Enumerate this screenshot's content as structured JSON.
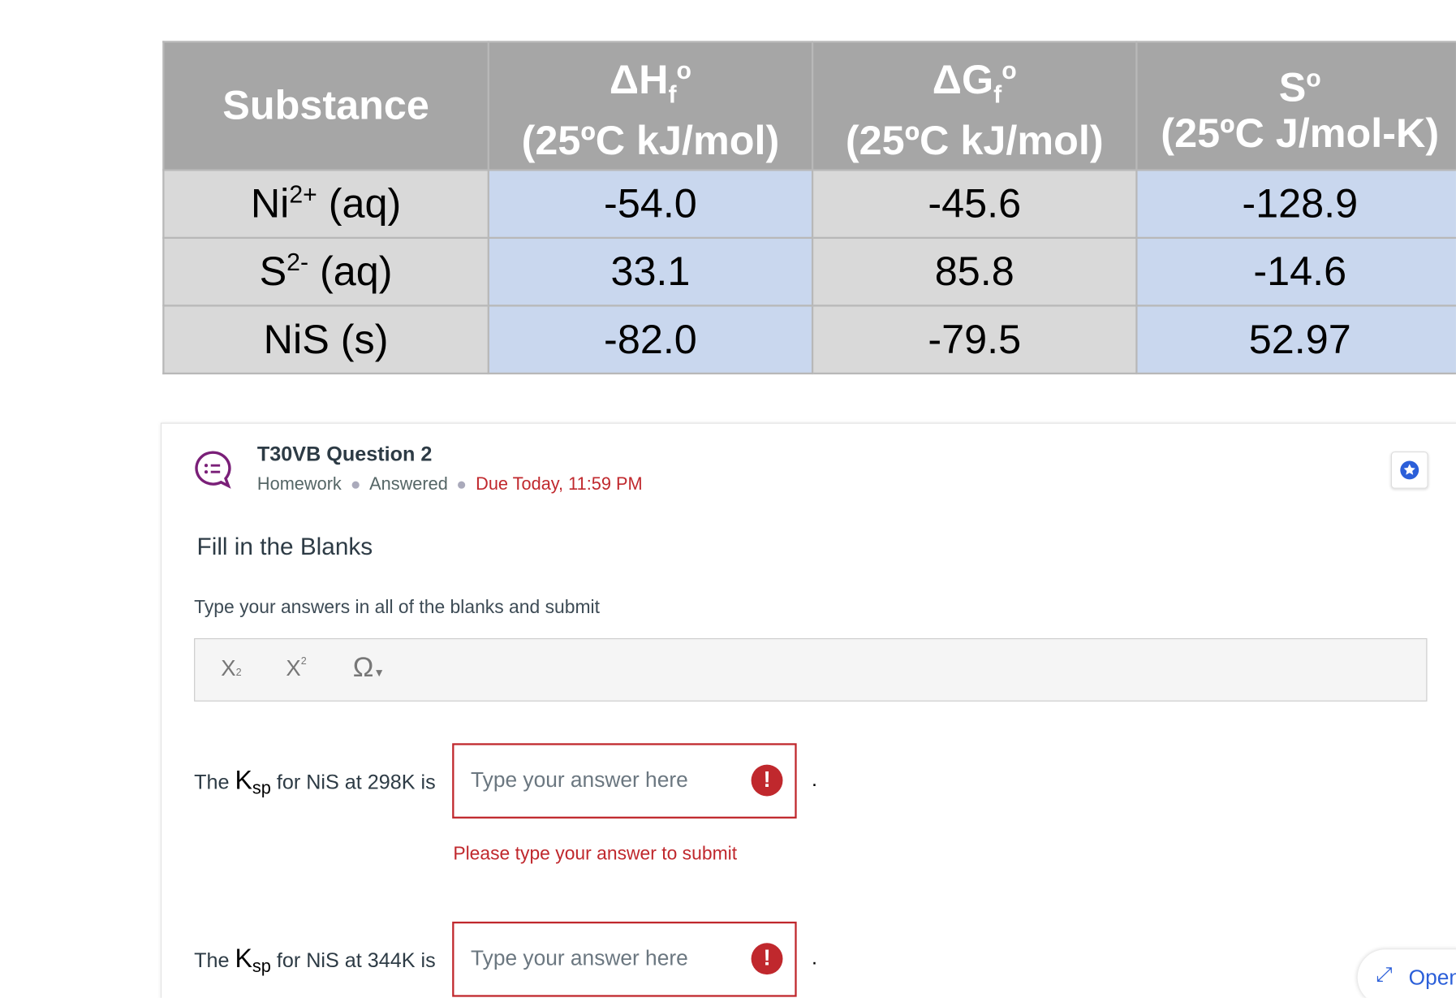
{
  "table": {
    "headers": [
      {
        "text": "Substance"
      },
      {
        "symbol": "ΔH",
        "sub": "f",
        "sup": "o",
        "unit": "(25ºC kJ/mol)"
      },
      {
        "symbol": "ΔG",
        "sub": "f",
        "sup": "o",
        "unit": "(25ºC kJ/mol)"
      },
      {
        "symbol": "S",
        "sup": "o",
        "unit": "(25ºC J/mol-K)"
      }
    ],
    "rows": [
      [
        {
          "base": "Ni",
          "sup": "2+",
          "state": "(aq)"
        },
        "-54.0",
        "-45.6",
        "-128.9"
      ],
      [
        {
          "base": "S",
          "sup": "2-",
          "state": "(aq)"
        },
        "33.1",
        "85.8",
        "-14.6"
      ],
      [
        {
          "base": "NiS",
          "state": "(s)"
        },
        "-82.0",
        "-79.5",
        "52.97"
      ]
    ]
  },
  "question": {
    "title": "T30VB Question 2",
    "meta": [
      "Homework",
      "Answered"
    ],
    "due": "Due Today, 11:59 PM",
    "heading": "Fill in the Blanks",
    "instructions": "Type your answers in all of the blanks and submit",
    "blanks": [
      {
        "prefix": "The",
        "k": "K",
        "ksub": "sp",
        "suffix": "for NiS at 298K is",
        "placeholder": "Type your answer here",
        "end": ".",
        "error": "Please type your answer to submit"
      },
      {
        "prefix": "The",
        "k": "K",
        "ksub": "sp",
        "suffix": "for NiS at 344K is",
        "placeholder": "Type your answer here",
        "end": "."
      }
    ],
    "open": "Open"
  }
}
